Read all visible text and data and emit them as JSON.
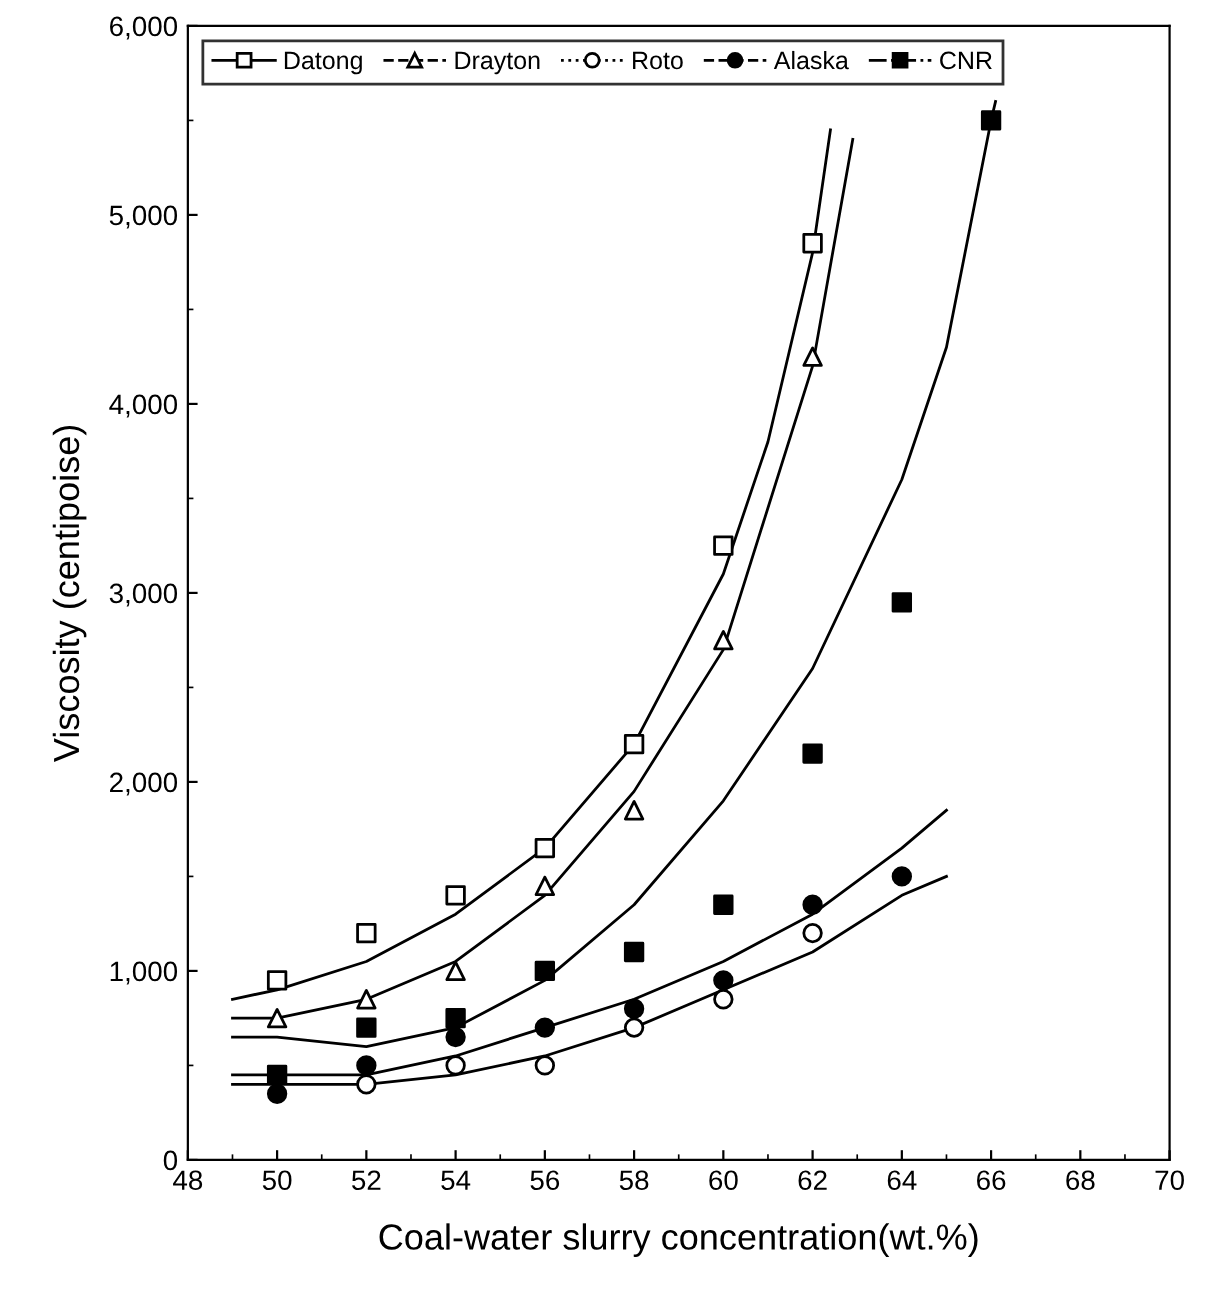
{
  "chart_data": {
    "type": "scatter",
    "xlabel": "Coal-water slurry concentration(wt.%)",
    "ylabel": "Viscosity (centipoise)",
    "xlim": [
      48,
      70
    ],
    "xticks": [
      48,
      50,
      52,
      54,
      56,
      58,
      60,
      62,
      64,
      66,
      68,
      70
    ],
    "ylim": [
      0,
      6000
    ],
    "yticks": [
      0,
      {
        "value": 1000,
        "label": "1,000"
      },
      {
        "value": 2000,
        "label": "2,000"
      },
      {
        "value": 3000,
        "label": "3,000"
      },
      {
        "value": 4000,
        "label": "4,000"
      },
      {
        "value": 5000,
        "label": "5,000"
      },
      {
        "value": 6000,
        "label": "6,000"
      }
    ],
    "grid": false,
    "legend": "top left",
    "series": [
      {
        "name": "Datong",
        "color": "#ffffff",
        "marker": "square",
        "line_style": "solid",
        "x": [
          50,
          52,
          54,
          56,
          58,
          60,
          62
        ],
        "values": [
          950,
          1200,
          1400,
          1650,
          2200,
          3250,
          4850
        ]
      },
      {
        "name": "Drayton",
        "color": "#ffffff",
        "marker": "triangle",
        "line_style": "dashed",
        "x": [
          50,
          52,
          54,
          56,
          58,
          60,
          62
        ],
        "values": [
          750,
          850,
          1000,
          1450,
          1850,
          2750,
          4250
        ]
      },
      {
        "name": "Roto",
        "color": "#ffffff",
        "marker": "circle",
        "line_style": "dotted",
        "x": [
          52,
          54,
          56,
          58,
          60,
          62
        ],
        "values": [
          400,
          500,
          500,
          700,
          850,
          1200
        ]
      },
      {
        "name": "Alaska",
        "color": "#000000",
        "marker": "circle",
        "line_style": "dashed",
        "x": [
          50,
          52,
          54,
          56,
          58,
          60,
          62,
          64
        ],
        "values": [
          350,
          500,
          650,
          700,
          800,
          950,
          1350,
          1500
        ]
      },
      {
        "name": "CNR",
        "color": "#000000",
        "marker": "square",
        "line_style": "dashdot",
        "x": [
          50,
          52,
          54,
          56,
          58,
          60,
          62,
          64,
          66
        ],
        "values": [
          450,
          700,
          750,
          1000,
          1100,
          1350,
          2150,
          2950,
          5500
        ]
      },
      {
        "type": "line",
        "color": "#000000",
        "x": [
          49,
          50,
          52,
          54,
          56,
          58,
          60,
          61,
          62,
          62.4
        ],
        "values": [
          850,
          900,
          1050,
          1300,
          1650,
          2200,
          3100,
          3800,
          4800,
          5450
        ]
      },
      {
        "type": "line",
        "color": "#000000",
        "x": [
          49,
          50,
          52,
          54,
          56,
          58,
          60,
          62,
          62.9
        ],
        "values": [
          750,
          750,
          850,
          1050,
          1400,
          1950,
          2700,
          4200,
          5400
        ]
      },
      {
        "type": "line",
        "color": "#000000",
        "x": [
          49,
          50,
          52,
          54,
          56,
          58,
          60,
          62,
          64,
          65,
          66,
          66.1
        ],
        "values": [
          650,
          650,
          600,
          700,
          950,
          1350,
          1900,
          2600,
          3600,
          4300,
          5500,
          5600
        ]
      },
      {
        "type": "line",
        "color": "#000000",
        "x": [
          49,
          50,
          52,
          54,
          56,
          58,
          60,
          62,
          64,
          65
        ],
        "values": [
          450,
          450,
          450,
          550,
          700,
          850,
          1050,
          1300,
          1650,
          1850
        ]
      },
      {
        "type": "line",
        "color": "#000000",
        "x": [
          49,
          50,
          52,
          54,
          56,
          58,
          60,
          62,
          64,
          65
        ],
        "values": [
          400,
          400,
          400,
          450,
          550,
          700,
          900,
          1100,
          1400,
          1500
        ]
      }
    ]
  }
}
